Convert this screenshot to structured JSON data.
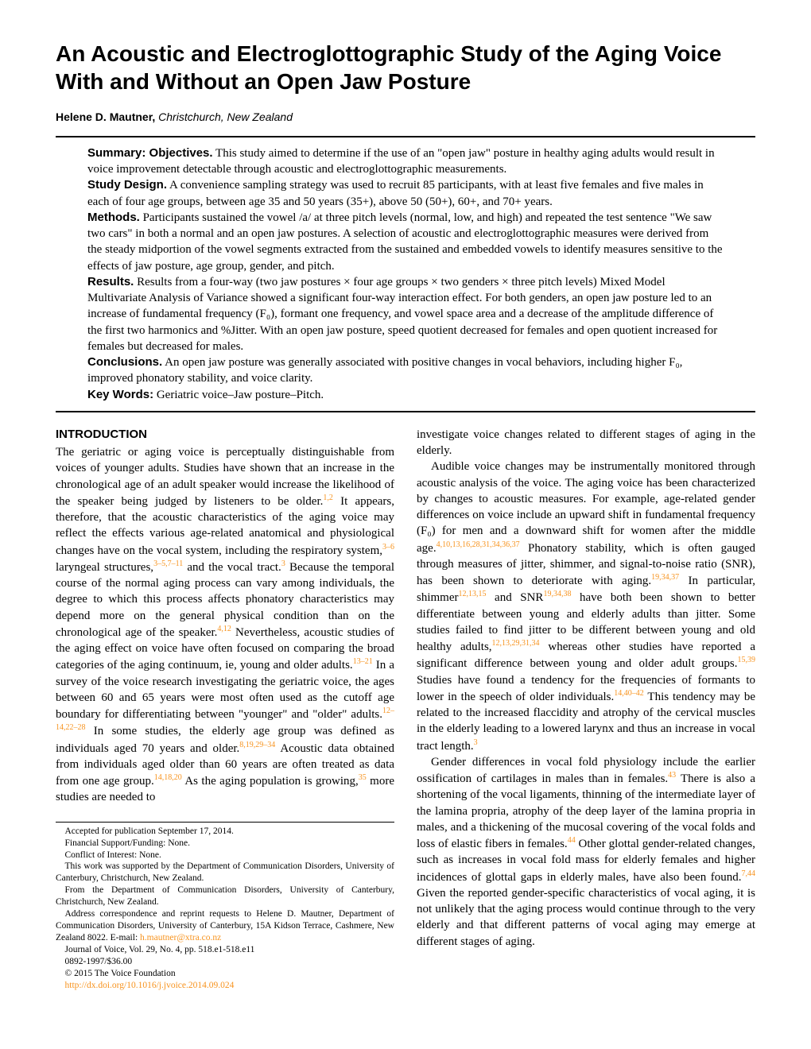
{
  "title": "An Acoustic and Electroglottographic Study of the Aging Voice With and Without an Open Jaw Posture",
  "author": {
    "name": "Helene D. Mautner,",
    "affiliation": "Christchurch, New Zealand"
  },
  "abstract": {
    "objectives_label": "Summary: Objectives.",
    "objectives": " This study aimed to determine if the use of an \"open jaw\" posture in healthy aging adults would result in voice improvement detectable through acoustic and electroglottographic measurements.",
    "design_label": "Study Design.",
    "design": " A convenience sampling strategy was used to recruit 85 participants, with at least five females and five males in each of four age groups, between age 35 and 50 years (35+), above 50 (50+), 60+, and 70+ years.",
    "methods_label": "Methods.",
    "methods": " Participants sustained the vowel /a/ at three pitch levels (normal, low, and high) and repeated the test sentence \"We saw two cars\" in both a normal and an open jaw postures. A selection of acoustic and electroglottographic measures were derived from the steady midportion of the vowel segments extracted from the sustained and embedded vowels to identify measures sensitive to the effects of jaw posture, age group, gender, and pitch.",
    "results_label": "Results.",
    "results": " Results from a four-way (two jaw postures × four age groups × two genders × three pitch levels) Mixed Model Multivariate Analysis of Variance showed a significant four-way interaction effect. For both genders, an open jaw posture led to an increase of fundamental frequency (F₀), formant one frequency, and vowel space area and a decrease of the amplitude difference of the first two harmonics and %Jitter. With an open jaw posture, speed quotient decreased for females and open quotient increased for females but decreased for males.",
    "conclusions_label": "Conclusions.",
    "conclusions": " An open jaw posture was generally associated with positive changes in vocal behaviors, including higher F₀, improved phonatory stability, and voice clarity.",
    "keywords_label": "Key Words:",
    "keywords": " Geriatric voice–Jaw posture–Pitch."
  },
  "intro_heading": "INTRODUCTION",
  "intro": {
    "p1a": "The geriatric or aging voice is perceptually distinguishable from voices of younger adults. Studies have shown that an increase in the chronological age of an adult speaker would increase the likelihood of the speaker being judged by listeners to be older.",
    "c1": "1,2",
    "p1b": " It appears, therefore, that the acoustic characteristics of the aging voice may reflect the effects various age-related anatomical and physiological changes have on the vocal system, including the respiratory system,",
    "c2": "3–6",
    "p1c": " laryngeal structures,",
    "c3": "3–5,7–11",
    "p1d": " and the vocal tract.",
    "c4": "3",
    "p1e": " Because the temporal course of the normal aging process can vary among individuals, the degree to which this process affects phonatory characteristics may depend more on the general physical condition than on the chronological age of the speaker.",
    "c5": "4,12",
    "p1f": " Nevertheless, acoustic studies of the aging effect on voice have often focused on comparing the broad categories of the aging continuum, ie, young and older adults.",
    "c6": "13–21",
    "p1g": " In a survey of the voice research investigating the geriatric voice, the ages between 60 and 65 years were most often used as the cutoff age boundary for differentiating between \"younger\" and \"older\" adults.",
    "c7": "12–14,22–28",
    "p1h": " In some studies, the elderly age group was defined as individuals aged 70 years and older.",
    "c8": "8,19,29–34",
    "p1i": " Acoustic data obtained from individuals aged older than 60 years are often treated as data from one age group.",
    "c9": "14,18,20",
    "p1j": " As the aging population is growing,",
    "c10": "35",
    "p1k": " more studies are needed to",
    "p1l": "investigate voice changes related to different stages of aging in the elderly.",
    "p2a": "Audible voice changes may be instrumentally monitored through acoustic analysis of the voice. The aging voice has been characterized by changes to acoustic measures. For example, age-related gender differences on voice include an upward shift in fundamental frequency (F₀) for men and a downward shift for women after the middle age.",
    "c11": "4,10,13,16,28,31,34,36,37",
    "p2b": " Phonatory stability, which is often gauged through measures of jitter, shimmer, and signal-to-noise ratio (SNR), has been shown to deteriorate with aging.",
    "c12": "19,34,37",
    "p2c": " In particular, shimmer",
    "c13": "12,13,15",
    "p2d": " and SNR",
    "c14": "19,34,38",
    "p2e": " have both been shown to better differentiate between young and elderly adults than jitter. Some studies failed to find jitter to be different between young and old healthy adults,",
    "c15": "12,13,29,31,34",
    "p2f": " whereas other studies have reported a significant difference between young and older adult groups.",
    "c16": "15,39",
    "p2g": " Studies have found a tendency for the frequencies of formants to lower in the speech of older individuals.",
    "c17": "14,40–42",
    "p2h": " This tendency may be related to the increased flaccidity and atrophy of the cervical muscles in the elderly leading to a lowered larynx and thus an increase in vocal tract length.",
    "c18": "3",
    "p3a": "Gender differences in vocal fold physiology include the earlier ossification of cartilages in males than in females.",
    "c19": "43",
    "p3b": " There is also a shortening of the vocal ligaments, thinning of the intermediate layer of the lamina propria, atrophy of the deep layer of the lamina propria in males, and a thickening of the mucosal covering of the vocal folds and loss of elastic fibers in females.",
    "c20": "44",
    "p3c": " Other glottal gender-related changes, such as increases in vocal fold mass for elderly females and higher incidences of glottal gaps in elderly males, have also been found.",
    "c21": "7,44",
    "p3d": " Given the reported gender-specific characteristics of vocal aging, it is not unlikely that the aging process would continue through to the very elderly and that different patterns of vocal aging may emerge at different stages of aging."
  },
  "footnotes": {
    "f1": "Accepted for publication September 17, 2014.",
    "f2": "Financial Support/Funding: None.",
    "f3": "Conflict of Interest: None.",
    "f4": "This work was supported by the Department of Communication Disorders, University of Canterbury, Christchurch, New Zealand.",
    "f5": "From the Department of Communication Disorders, University of Canterbury, Christchurch, New Zealand.",
    "f6a": "Address correspondence and reprint requests to Helene D. Mautner, Department of Communication Disorders, University of Canterbury, 15A Kidson Terrace, Cashmere, New Zealand 8022. E-mail: ",
    "f6b": "h.mautner@xtra.co.nz",
    "f7": "Journal of Voice, Vol. 29, No. 4, pp. 518.e1-518.e11",
    "f8": "0892-1997/$36.00",
    "f9": "© 2015 The Voice Foundation",
    "f10": "http://dx.doi.org/10.1016/j.jvoice.2014.09.024"
  },
  "colors": {
    "citation": "#f7931e",
    "text": "#000000",
    "background": "#ffffff"
  }
}
